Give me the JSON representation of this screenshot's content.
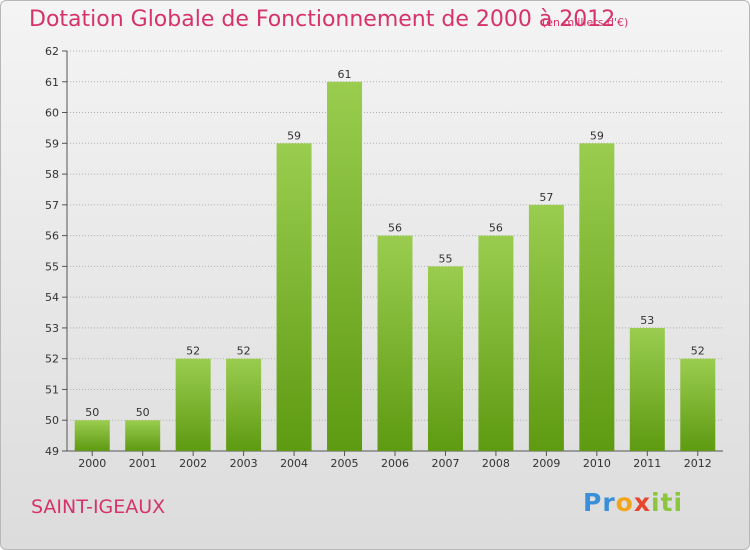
{
  "title": "Dotation Globale de Fonctionnement de 2000 à 2012",
  "unit": "(en milliers d'€)",
  "commune": "SAINT-IGEAUX",
  "brand": {
    "p1": "Pr",
    "p2": "o",
    "p3": "x",
    "p4": "iti"
  },
  "colors": {
    "bar_top": "#9acd4f",
    "bar_bottom": "#5e9a12",
    "title": "#d6336c",
    "grid": "#b0b0b0"
  },
  "chart_data": {
    "type": "bar",
    "title": "Dotation Globale de Fonctionnement de 2000 à 2012",
    "subtitle": "(en milliers d'€)",
    "categories": [
      "2000",
      "2001",
      "2002",
      "2003",
      "2004",
      "2005",
      "2006",
      "2007",
      "2008",
      "2009",
      "2010",
      "2011",
      "2012"
    ],
    "values": [
      50,
      50,
      52,
      52,
      59,
      61,
      56,
      55,
      56,
      57,
      59,
      53,
      52
    ],
    "ylim": [
      49,
      62
    ],
    "yticks": [
      49,
      50,
      51,
      52,
      53,
      54,
      55,
      56,
      57,
      58,
      59,
      60,
      61,
      62
    ],
    "grid": true,
    "xlabel": "",
    "ylabel": ""
  }
}
